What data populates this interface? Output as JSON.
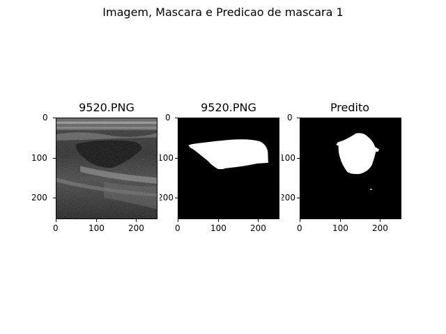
{
  "figure": {
    "title": "Imagem, Mascara e Predicao de mascara 1"
  },
  "panels": [
    {
      "title": "9520.PNG",
      "kind": "ultrasound-image"
    },
    {
      "title": "9520.PNG",
      "kind": "ground-truth-mask"
    },
    {
      "title": "Predito",
      "kind": "predicted-mask"
    }
  ],
  "axes": {
    "y_ticks": [
      "0",
      "100",
      "200"
    ],
    "x_ticks": [
      "0",
      "100",
      "200"
    ]
  }
}
